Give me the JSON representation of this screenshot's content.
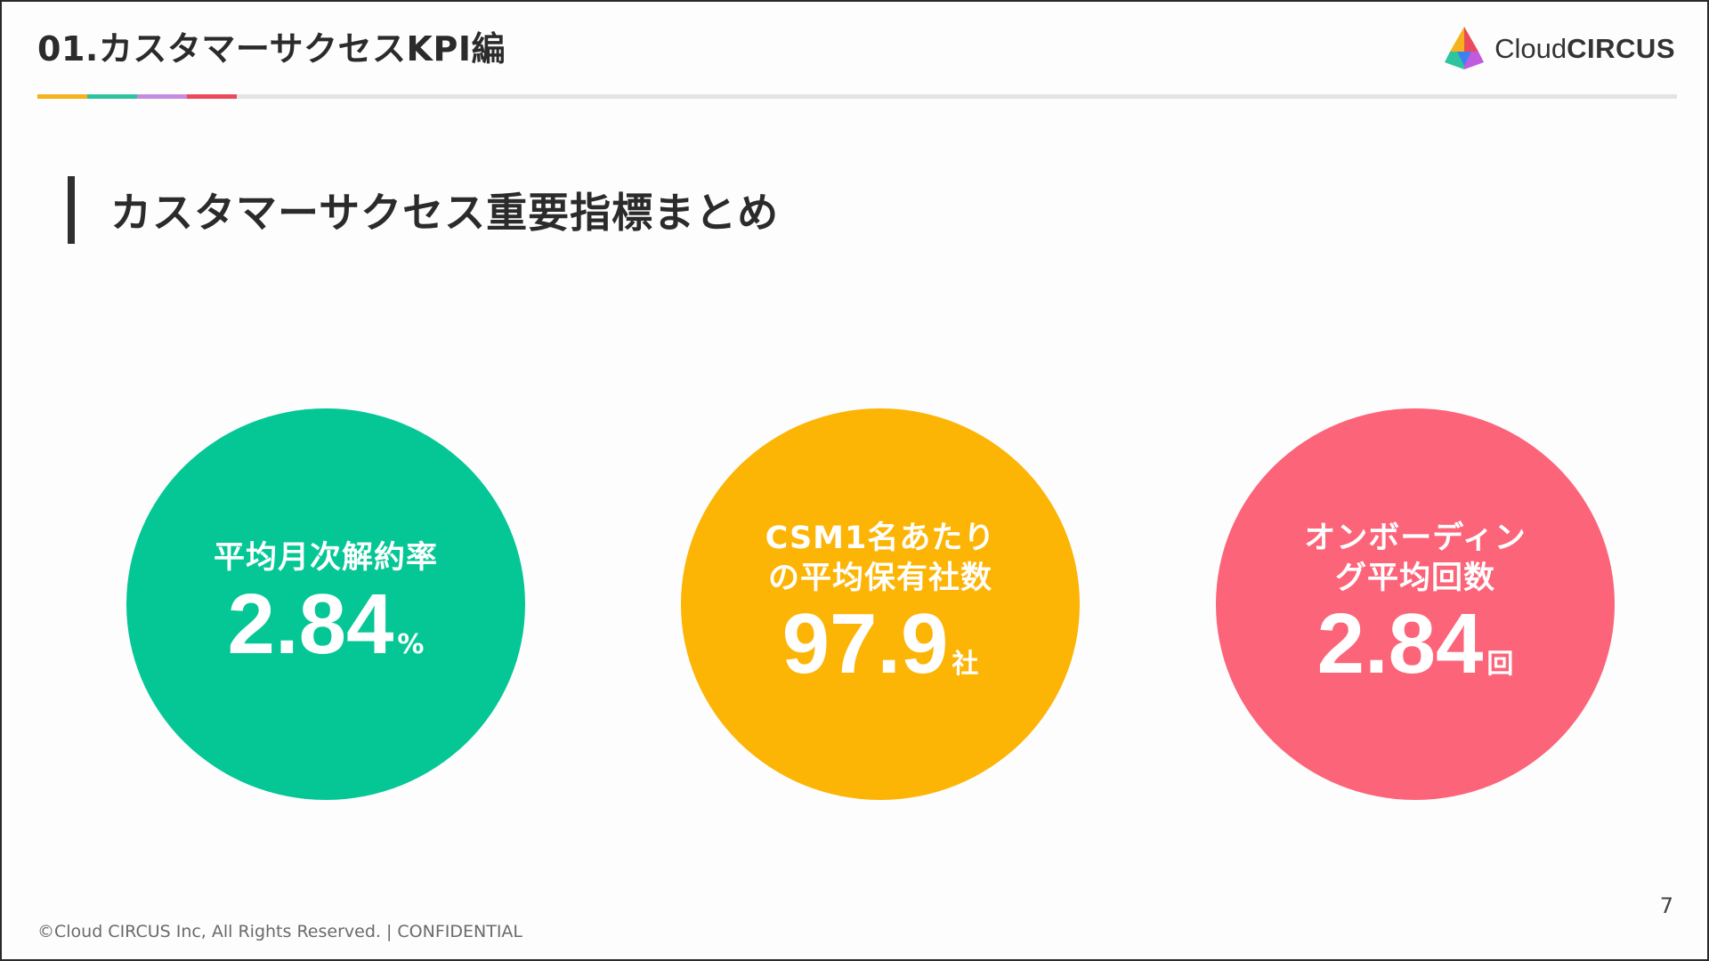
{
  "header": {
    "title": "01.カスタマーサクセスKPI編",
    "rule_colors": [
      "#f5b21c",
      "#2ec4a0",
      "#c58be0",
      "#ec4a5c"
    ]
  },
  "logo": {
    "text_light": "Cloud",
    "text_bold": "CIRCUS"
  },
  "section": {
    "heading": "カスタマーサクセス重要指標まとめ"
  },
  "kpis": [
    {
      "label_lines": [
        "平均月次解約率"
      ],
      "value": "2.84",
      "unit": "%",
      "color": "#05c796"
    },
    {
      "label_lines": [
        "CSM1名あたり",
        "の平均保有社数"
      ],
      "value": "97.9",
      "unit": "社",
      "color": "#fcb405"
    },
    {
      "label_lines": [
        "オンボーディン",
        "グ平均回数"
      ],
      "value": "2.84",
      "unit": "回",
      "color": "#fc6479"
    }
  ],
  "page_number": "7",
  "footer": {
    "text": "©Cloud CIRCUS Inc, All Rights Reserved. | CONFIDENTIAL"
  }
}
